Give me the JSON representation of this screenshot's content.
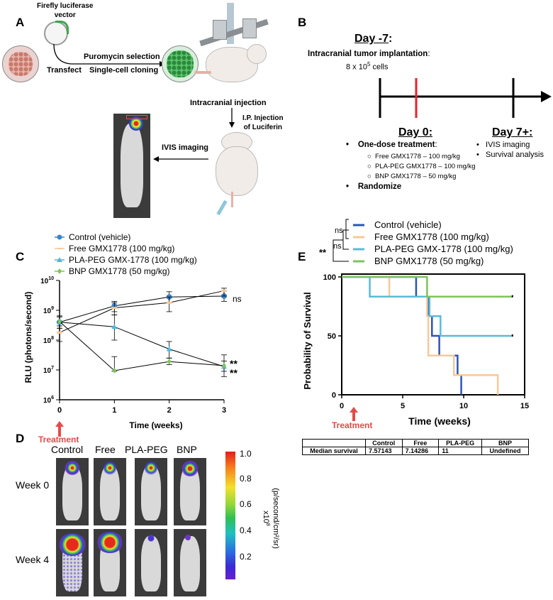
{
  "panels": {
    "A": "A",
    "B": "B",
    "C": "C",
    "D": "D",
    "E": "E"
  },
  "panelA": {
    "vector_label_line1": "Firefly  luciferase",
    "vector_label_line2": "vector",
    "transfect": "Transfect",
    "selection": "Puromycin selection",
    "cloning": "Single-cell cloning",
    "intracranial": "Intracranial injection",
    "ip_line1": "I.P. Injection",
    "ip_line2": "of Luciferin",
    "ivis": "IVIS imaging"
  },
  "panelB": {
    "day_m7": "Day -7",
    "colon": ":",
    "implant": "Intracranial tumor implantation",
    "implant_colon": ":",
    "cells": "8 x 10",
    "cells_exp": "5",
    "cells_unit": " cells",
    "day0": "Day 0:",
    "day7": "Day 7+:",
    "one_dose": "One-dose treatment",
    "one_dose_colon": ":",
    "treatments": [
      "Free GMX1778 – 100 mg/kg",
      "PLA-PEG GMX1778 – 100 mg/kg",
      "BNP GMX1778 – 50 mg/kg"
    ],
    "randomize": "Randomize",
    "after": [
      "IVIS imaging",
      "Survival analysis"
    ]
  },
  "panelC": {
    "legend": [
      "Control (vehicle)",
      "Free GMX1778 (100 mg/kg)",
      "PLA-PEG GMX-1778 (100 mg/kg)",
      "BNP GMX1778 (50 mg/kg)"
    ],
    "colors": [
      "#3d85c6",
      "#f6c89a",
      "#4fb9df",
      "#7cc35a"
    ],
    "ylabel": "RLU (photons/second)",
    "xlabel": "Time (weeks)",
    "xticks": [
      "0",
      "1",
      "2",
      "3"
    ],
    "yticks": [
      {
        "base": "10",
        "exp": "6"
      },
      {
        "base": "10",
        "exp": "7"
      },
      {
        "base": "10",
        "exp": "8"
      },
      {
        "base": "10",
        "exp": "9"
      },
      {
        "base": "10",
        "exp": "10"
      }
    ],
    "ns": "ns",
    "stars1": "**",
    "stars2": "**",
    "treatment": "Treatment"
  },
  "panelD": {
    "columns": [
      "Control",
      "Free",
      "PLA-PEG",
      "BNP"
    ],
    "rows": [
      "Week 0",
      "Week 4"
    ],
    "scale_ticks": [
      "1.0",
      "0.8",
      "0.6",
      "0.4",
      "0.2"
    ],
    "scale_mult": "x10",
    "scale_mult_exp": "8",
    "scale_unit": "(p/second/cm²/sr)"
  },
  "panelE": {
    "legend": [
      "Control (vehicle)",
      "Free GMX1778 (100 mg/kg)",
      "PLA-PEG GMX-1778 (100 mg/kg)",
      "BNP GMX1778 (50 mg/kg)"
    ],
    "ns1": "ns",
    "ns2": "ns",
    "stars": "**",
    "ylabel": "Probability of Survival",
    "xlabel": "Time (weeks)",
    "xticks": [
      "0",
      "5",
      "10",
      "15"
    ],
    "yticks": [
      "0",
      "50",
      "100"
    ],
    "treatment": "Treatment",
    "table": {
      "header": [
        "",
        "Control",
        "Free",
        "PLA-PEG",
        "BNP"
      ],
      "row": [
        "Median survival",
        "7.57143",
        "7.14286",
        "11",
        "Undefined"
      ]
    }
  },
  "chart_data": [
    {
      "type": "line",
      "x": [
        0,
        1,
        2,
        3
      ],
      "xlabel": "Time (weeks)",
      "ylabel": "RLU (photons/second)",
      "yscale": "log",
      "ylim": [
        1000000,
        10000000000
      ],
      "xlim": [
        0,
        3
      ],
      "series": [
        {
          "name": "Control (vehicle)",
          "color": "#3d85c6",
          "marker": "circle",
          "values": [
            400000000,
            1400000000,
            2800000000,
            3000000000
          ],
          "err": [
            [
              250000000,
              650000000
            ],
            [
              900000000,
              2000000000
            ],
            [
              1800000000,
              4200000000
            ],
            [
              2000000000,
              4400000000
            ]
          ]
        },
        {
          "name": "Free GMX1778 (100 mg/kg)",
          "color": "#f6c89a",
          "marker": "dash",
          "values": [
            180000000,
            1200000000,
            1800000000,
            4500000000
          ],
          "err": [
            [
              90000000,
              400000000
            ],
            [
              700000000,
              1800000000
            ],
            [
              900000000,
              2800000000
            ],
            [
              3000000000,
              5500000000
            ]
          ]
        },
        {
          "name": "PLA-PEG GMX-1778 (100 mg/kg)",
          "color": "#4fb9df",
          "marker": "triangle",
          "values": [
            400000000,
            280000000,
            50000000,
            13000000
          ],
          "err": [
            [
              250000000,
              650000000
            ],
            [
              100000000,
              700000000
            ],
            [
              25000000,
              90000000
            ],
            [
              6000000,
              32000000
            ]
          ]
        },
        {
          "name": "BNP GMX1778 (50 mg/kg)",
          "color": "#7cc35a",
          "marker": "diamond",
          "values": [
            420000000,
            9500000,
            19000000,
            14000000
          ],
          "err": [
            [
              300000000,
              600000000
            ],
            [
              9000000,
              28000000
            ],
            [
              15000000,
              25000000
            ],
            [
              9000000,
              20000000
            ]
          ]
        }
      ],
      "annotations": [
        "ns",
        "**",
        "**"
      ]
    },
    {
      "type": "line",
      "step": true,
      "xlabel": "Time (weeks)",
      "ylabel": "Probability of Survival",
      "xlim": [
        0,
        15
      ],
      "ylim": [
        0,
        100
      ],
      "series": [
        {
          "name": "Control (vehicle)",
          "color": "#2b55b5",
          "points": [
            [
              0,
              100
            ],
            [
              6.1,
              100
            ],
            [
              6.1,
              83.3
            ],
            [
              7.1,
              83.3
            ],
            [
              7.1,
              66.7
            ],
            [
              7.4,
              66.7
            ],
            [
              7.4,
              50
            ],
            [
              8.0,
              50
            ],
            [
              8.0,
              33.3
            ],
            [
              9.5,
              33.3
            ],
            [
              9.5,
              16.7
            ],
            [
              9.8,
              16.7
            ],
            [
              9.8,
              0
            ]
          ]
        },
        {
          "name": "Free GMX1778 (100 mg/kg)",
          "color": "#f6c89a",
          "points": [
            [
              0,
              100
            ],
            [
              3.9,
              100
            ],
            [
              3.9,
              83.3
            ],
            [
              7.0,
              83.3
            ],
            [
              7.0,
              66.7
            ],
            [
              7.1,
              66.7
            ],
            [
              7.1,
              33.3
            ],
            [
              9.2,
              33.3
            ],
            [
              9.2,
              16.7
            ],
            [
              12.8,
              16.7
            ],
            [
              12.8,
              0
            ]
          ]
        },
        {
          "name": "PLA-PEG GMX-1778 (100 mg/kg)",
          "color": "#5bbbd6",
          "points": [
            [
              0,
              100
            ],
            [
              2.3,
              100
            ],
            [
              2.3,
              83.3
            ],
            [
              7.2,
              83.3
            ],
            [
              7.2,
              66.7
            ],
            [
              8.1,
              66.7
            ],
            [
              8.1,
              50
            ],
            [
              14,
              50
            ]
          ]
        },
        {
          "name": "BNP GMX1778 (50 mg/kg)",
          "color": "#7cc35a",
          "points": [
            [
              0,
              100
            ],
            [
              7.0,
              100
            ],
            [
              7.0,
              83.3
            ],
            [
              14,
              83.3
            ]
          ]
        }
      ],
      "median_survival": {
        "Control": "7.57143",
        "Free": "7.14286",
        "PLA-PEG": "11",
        "BNP": "Undefined"
      }
    }
  ]
}
